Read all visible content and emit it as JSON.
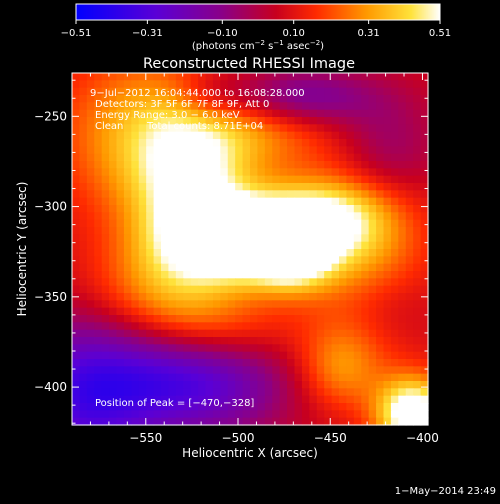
{
  "chart_data": {
    "type": "heatmap",
    "title": "Reconstructed RHESSI Image",
    "xlabel": "Heliocentric X (arcsec)",
    "ylabel": "Heliocentric Y (arcsec)",
    "xlim": [
      -590,
      -397
    ],
    "ylim": [
      -421,
      -226
    ],
    "x_ticks": [
      -550,
      -500,
      -450,
      -400
    ],
    "y_ticks": [
      -250,
      -300,
      -350,
      -400
    ],
    "x_tick_labels": [
      "−550",
      "−500",
      "−450",
      "−400"
    ],
    "y_tick_labels": [
      "−250",
      "−300",
      "−350",
      "−400"
    ],
    "colorbar": {
      "min": -0.51,
      "max": 0.51,
      "tick_values": [
        -0.51,
        -0.31,
        -0.1,
        0.1,
        0.31,
        0.51
      ],
      "tick_labels": [
        "−0.51",
        "−0.31",
        "−0.10",
        "0.10",
        "0.31",
        "0.51"
      ],
      "units_prefix": "(photons cm",
      "units_sup1": "−2",
      "units_mid1": " s",
      "units_sup2": "−1",
      "units_mid2": " asec",
      "units_sup3": "−2",
      "units_suffix": ")"
    },
    "annotations": {
      "time_range": "9−Jul−2012 16:04:44.000 to 16:08:28.000",
      "detectors": "Detectors: 3F 5F 6F 7F 8F 9F, Att 0",
      "energy_range": "Energy Range: 3.0 − 6.0 keV",
      "method": "Clean",
      "total_counts": "Total counts: 8.71E+04",
      "peak": "Position of Peak = [−470,−328]"
    },
    "peak_position": [
      -470,
      -328
    ],
    "components": [
      {
        "x": -492,
        "y": -318,
        "sx": 28,
        "sy": 16,
        "amp": 0.62
      },
      {
        "x": -470,
        "y": -328,
        "sx": 15,
        "sy": 13,
        "amp": 0.32
      },
      {
        "x": -455,
        "y": -305,
        "sx": 24,
        "sy": 14,
        "amp": 0.3
      },
      {
        "x": -525,
        "y": -290,
        "sx": 22,
        "sy": 30,
        "amp": 0.38
      },
      {
        "x": -555,
        "y": -260,
        "sx": 30,
        "sy": 32,
        "amp": 0.25
      },
      {
        "x": -540,
        "y": -345,
        "sx": 28,
        "sy": 22,
        "amp": 0.22
      },
      {
        "x": -430,
        "y": -325,
        "sx": 24,
        "sy": 40,
        "amp": 0.22
      },
      {
        "x": -490,
        "y": -255,
        "sx": 30,
        "sy": 18,
        "amp": 0.22
      },
      {
        "x": -510,
        "y": -370,
        "sx": 30,
        "sy": 16,
        "amp": 0.18
      },
      {
        "x": -405,
        "y": -415,
        "sx": 14,
        "sy": 14,
        "amp": 0.55
      },
      {
        "x": -445,
        "y": -390,
        "sx": 16,
        "sy": 16,
        "amp": 0.2
      },
      {
        "x": -470,
        "y": -240,
        "sx": 30,
        "sy": 12,
        "amp": -0.3
      },
      {
        "x": -525,
        "y": -395,
        "sx": 36,
        "sy": 22,
        "amp": -0.4
      },
      {
        "x": -585,
        "y": -405,
        "sx": 28,
        "sy": 30,
        "amp": -0.35
      },
      {
        "x": -515,
        "y": -240,
        "sx": 14,
        "sy": 10,
        "amp": -0.12
      },
      {
        "x": -420,
        "y": -270,
        "sx": 20,
        "sy": 22,
        "amp": -0.18
      },
      {
        "x": -420,
        "y": -355,
        "sx": 18,
        "sy": 16,
        "amp": -0.1
      }
    ],
    "background": 0.07
  },
  "footer": {
    "timestamp": "1−May−2014 23:49"
  }
}
